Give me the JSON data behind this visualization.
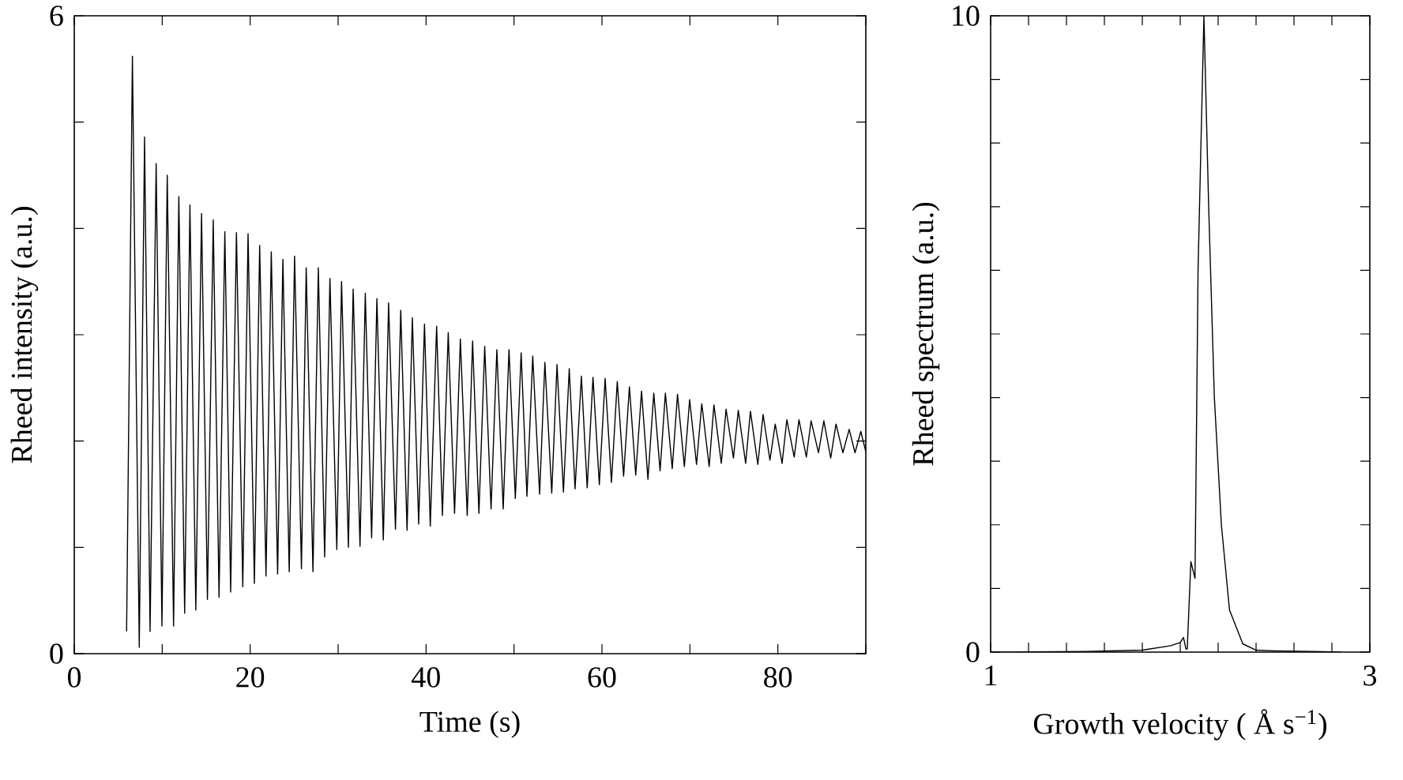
{
  "chart_data": [
    {
      "type": "line",
      "xlabel": "Time  (s)",
      "ylabel": "Rheed intensity  (a.u.)",
      "marker": "none",
      "xlim": [
        0,
        90
      ],
      "ylim": [
        0,
        6
      ],
      "xticks": [
        0,
        {
          "value": 10,
          "label": null
        },
        20,
        {
          "value": 30,
          "label": null
        },
        40,
        {
          "value": 50,
          "label": null
        },
        60,
        {
          "value": 70,
          "label": null
        },
        80,
        {
          "value": 90,
          "label": null
        }
      ],
      "yticks": [
        0,
        {
          "value": 1,
          "label": null
        },
        {
          "value": 2,
          "label": null
        },
        {
          "value": 3,
          "label": null
        },
        {
          "value": 4,
          "label": null
        },
        {
          "value": 5,
          "label": null
        },
        6
      ],
      "series": [
        {
          "color": "#000000",
          "x": [
            5.95,
            6.61,
            7.39,
            7.99,
            8.62,
            9.31,
            9.97,
            10.57,
            11.29,
            11.89,
            12.55,
            13.15,
            13.82,
            14.47,
            15.14,
            15.8,
            16.46,
            17.12,
            17.78,
            18.44,
            19.16,
            19.76,
            20.48,
            21.08,
            21.8,
            22.4,
            23.12,
            23.72,
            24.44,
            25.05,
            25.83,
            26.37,
            27.14,
            27.75,
            28.47,
            29.07,
            29.85,
            30.39,
            31.17,
            31.71,
            32.49,
            33.09,
            33.81,
            34.41,
            35.14,
            35.74,
            36.52,
            37.12,
            37.84,
            38.44,
            39.16,
            39.82,
            40.48,
            41.2,
            41.86,
            42.52,
            43.24,
            43.9,
            44.68,
            45.29,
            46.01,
            46.67,
            47.39,
            48.05,
            48.77,
            49.43,
            50.15,
            50.81,
            51.47,
            52.13,
            52.91,
            53.51,
            54.29,
            54.89,
            55.62,
            56.28,
            56.94,
            57.66,
            58.32,
            58.98,
            59.7,
            60.36,
            61.08,
            61.74,
            62.46,
            63.12,
            63.84,
            64.5,
            65.23,
            65.89,
            66.61,
            67.21,
            67.99,
            68.59,
            69.37,
            69.97,
            70.75,
            71.35,
            72.19,
            72.73,
            73.57,
            74.11,
            74.95,
            75.5,
            76.34,
            76.88,
            77.72,
            78.32,
            79.1,
            79.7,
            80.48,
            81.02,
            81.86,
            82.4,
            83.24,
            83.78,
            84.62,
            85.23,
            86.01,
            86.61,
            87.39,
            88.11,
            88.77,
            89.43,
            90
          ],
          "values": [
            0.21,
            5.62,
            0.06,
            4.86,
            0.21,
            4.61,
            0.26,
            4.5,
            0.26,
            4.3,
            0.38,
            4.22,
            0.41,
            4.14,
            0.51,
            4.08,
            0.53,
            3.97,
            0.58,
            3.96,
            0.63,
            3.95,
            0.66,
            3.84,
            0.73,
            3.78,
            0.75,
            3.71,
            0.77,
            3.74,
            0.8,
            3.63,
            0.77,
            3.63,
            0.91,
            3.53,
            0.98,
            3.5,
            1.0,
            3.43,
            1.01,
            3.39,
            1.09,
            3.34,
            1.07,
            3.3,
            1.17,
            3.23,
            1.16,
            3.16,
            1.22,
            3.1,
            1.2,
            3.08,
            1.3,
            3.02,
            1.32,
            2.96,
            1.3,
            2.94,
            1.32,
            2.89,
            1.36,
            2.86,
            1.36,
            2.86,
            1.46,
            2.83,
            1.48,
            2.8,
            1.5,
            2.74,
            1.51,
            2.72,
            1.52,
            2.68,
            1.55,
            2.61,
            1.56,
            2.6,
            1.59,
            2.59,
            1.61,
            2.56,
            1.67,
            2.51,
            1.68,
            2.47,
            1.64,
            2.45,
            1.72,
            2.45,
            1.74,
            2.44,
            1.76,
            2.39,
            1.78,
            2.35,
            1.76,
            2.34,
            1.79,
            2.3,
            1.84,
            2.29,
            1.79,
            2.28,
            1.78,
            2.25,
            1.82,
            2.16,
            1.79,
            2.2,
            1.85,
            2.2,
            1.85,
            2.19,
            1.89,
            2.19,
            1.84,
            2.16,
            1.89,
            2.11,
            1.89,
            2.09,
            1.9
          ]
        }
      ]
    },
    {
      "type": "line",
      "xlabel": "Growth velocity  ( Å s$^{−1}$)",
      "ylabel": "Rheed spectrum  (a.u.)",
      "marker": "none",
      "xlim": [
        1,
        3
      ],
      "ylim": [
        0,
        10
      ],
      "xticks": [
        1,
        {
          "value": 1.2,
          "label": null
        },
        {
          "value": 1.4,
          "label": null
        },
        {
          "value": 1.6,
          "label": null
        },
        {
          "value": 1.8,
          "label": null
        },
        {
          "value": 2.0,
          "label": null
        },
        {
          "value": 2.2,
          "label": null
        },
        {
          "value": 2.4,
          "label": null
        },
        {
          "value": 2.6,
          "label": null
        },
        {
          "value": 2.8,
          "label": null
        },
        3
      ],
      "yticks": [
        0,
        {
          "value": 1,
          "label": null
        },
        {
          "value": 2,
          "label": null
        },
        {
          "value": 3,
          "label": null
        },
        {
          "value": 4,
          "label": null
        },
        {
          "value": 5,
          "label": null
        },
        {
          "value": 6,
          "label": null
        },
        {
          "value": 7,
          "label": null
        },
        {
          "value": 8,
          "label": null
        },
        {
          "value": 9,
          "label": null
        },
        10
      ],
      "series": [
        {
          "color": "#000000",
          "x": [
            1.0,
            1.5,
            1.8,
            1.95,
            2.0,
            2.017,
            2.03,
            2.037,
            2.056,
            2.078,
            2.094,
            2.125,
            2.15,
            2.18,
            2.217,
            2.26,
            2.33,
            2.4,
            2.5,
            2.7,
            2.85
          ],
          "values": [
            0.0,
            0.01,
            0.03,
            0.1,
            0.15,
            0.23,
            0.05,
            0.05,
            1.42,
            1.16,
            6.0,
            10.0,
            7.0,
            4.0,
            2.0,
            0.66,
            0.13,
            0.03,
            0.02,
            0.01,
            0.0
          ]
        }
      ]
    }
  ]
}
